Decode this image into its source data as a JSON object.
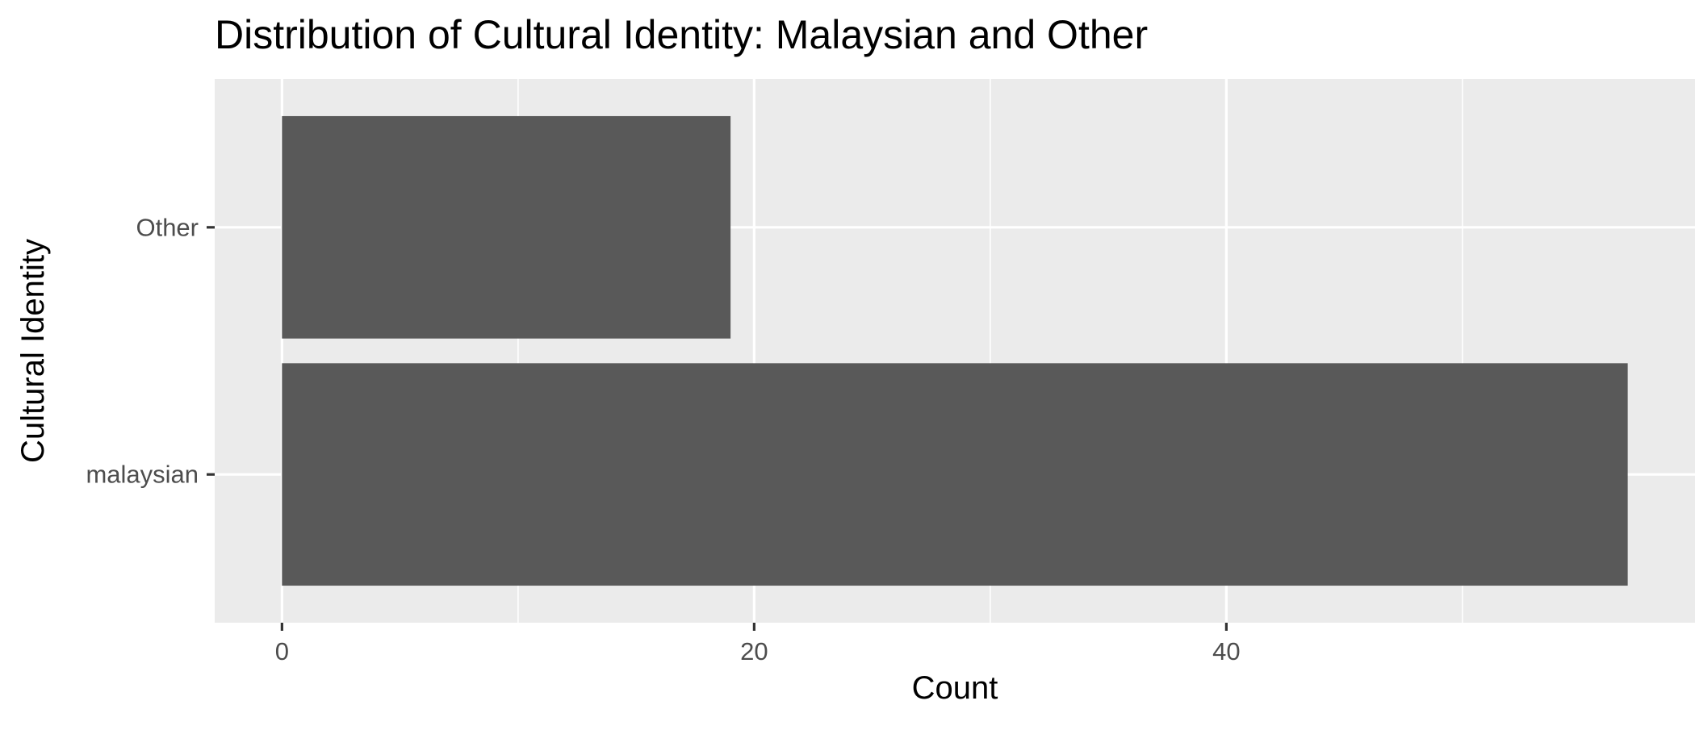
{
  "chart_data": {
    "type": "bar",
    "orientation": "horizontal",
    "title": "Distribution of Cultural Identity: Malaysian and Other",
    "xlabel": "Count",
    "ylabel": "Cultural Identity",
    "categories": [
      "malaysian",
      "Other"
    ],
    "values": [
      57,
      19
    ],
    "xlim": [
      -2.85,
      59.85
    ],
    "x_ticks": [
      0,
      20,
      40
    ],
    "x_tick_labels": [
      "0",
      "20",
      "40"
    ],
    "grid": true,
    "legend": "none",
    "colors": {
      "bar": "#595959",
      "panel_background": "#ebebeb",
      "grid_major": "#ffffff",
      "grid_minor": "#f5f5f5",
      "axis_text": "#4d4d4d",
      "tick_mark": "#333333",
      "title_text": "#000000"
    }
  }
}
